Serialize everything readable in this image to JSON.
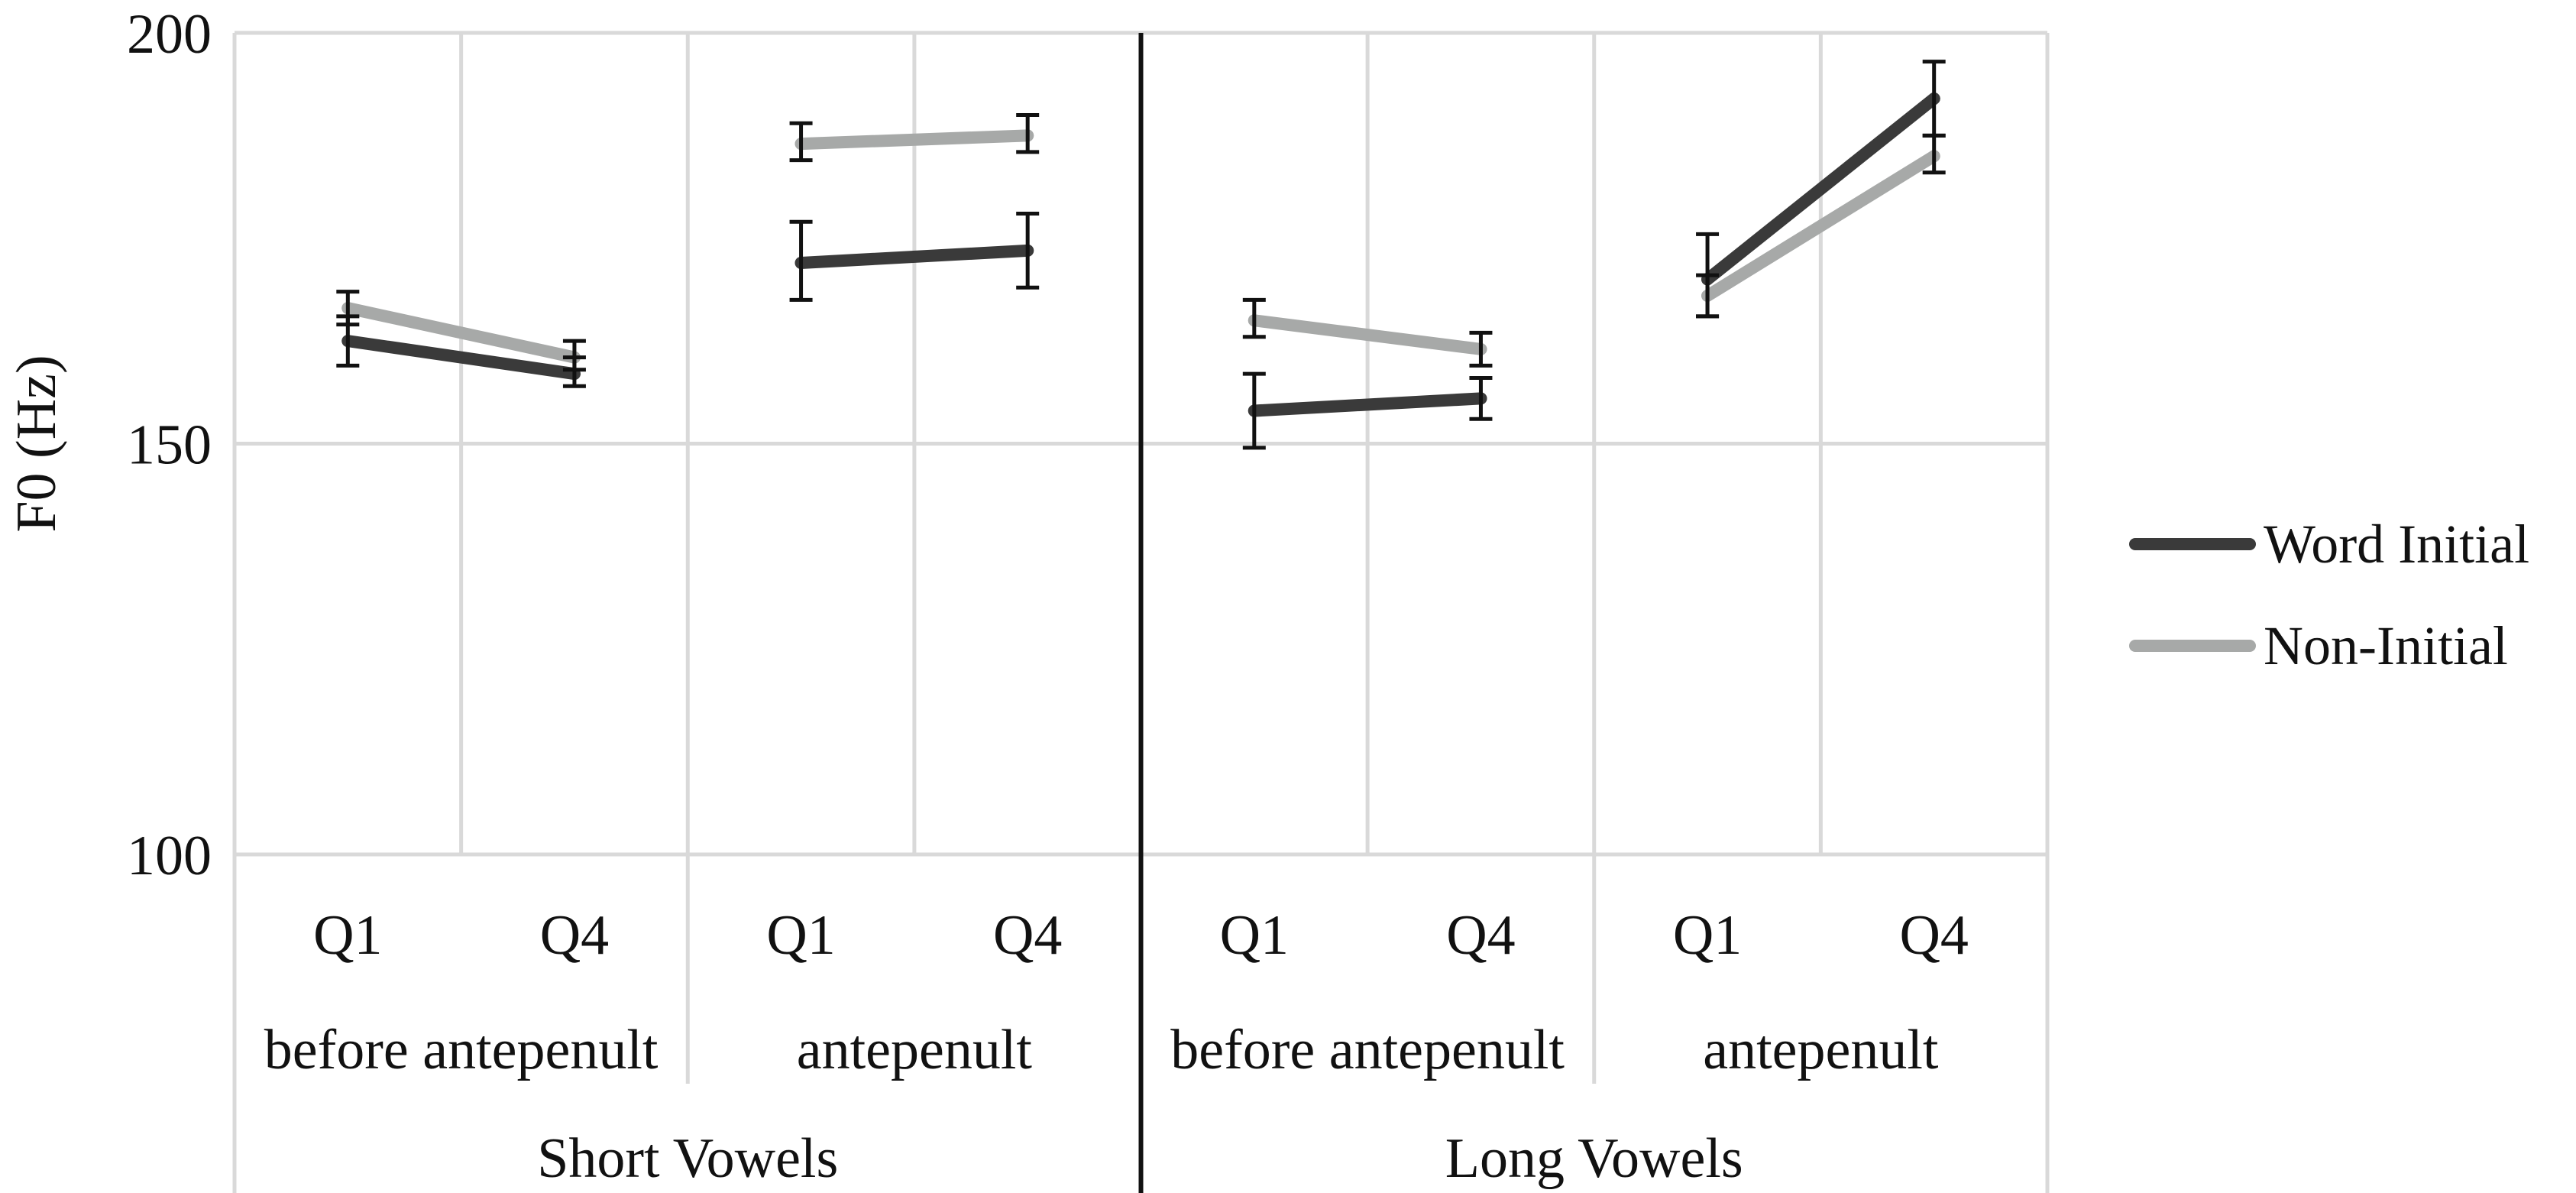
{
  "chart_data": {
    "type": "line",
    "ylabel": "F0 (Hz)",
    "ylim": [
      100,
      200
    ],
    "yticks": [
      100,
      150,
      200
    ],
    "grid": true,
    "legend_position": "right",
    "categories": [
      "Q1",
      "Q4",
      "Q1",
      "Q4",
      "Q1",
      "Q4",
      "Q1",
      "Q4"
    ],
    "positions": [
      {
        "label": "before antepenult",
        "categories": [
          0,
          1
        ]
      },
      {
        "label": "antepenult",
        "categories": [
          2,
          3
        ]
      },
      {
        "label": "before antepenult",
        "categories": [
          4,
          5
        ]
      },
      {
        "label": "antepenult",
        "categories": [
          6,
          7
        ]
      }
    ],
    "vowel_groups": [
      {
        "label": "Short Vowels",
        "categories": [
          0,
          1,
          2,
          3
        ]
      },
      {
        "label": "Long Vowels",
        "categories": [
          4,
          5,
          6,
          7
        ]
      }
    ],
    "series": [
      {
        "name": "Word Initial",
        "color": "#3a3a3a",
        "segments": [
          [
            0,
            1
          ],
          [
            2,
            3
          ],
          [
            4,
            5
          ],
          [
            6,
            7
          ]
        ],
        "values": [
          162.5,
          158.5,
          172.0,
          173.5,
          154.0,
          155.5,
          170.0,
          192.0
        ],
        "err_low": [
          159.5,
          157.0,
          167.5,
          169.0,
          149.5,
          153.0,
          165.5,
          187.5
        ],
        "err_high": [
          165.5,
          160.5,
          177.0,
          178.0,
          158.5,
          158.0,
          175.5,
          196.5
        ]
      },
      {
        "name": "Non-Initial",
        "color": "#a7a9a8",
        "segments": [
          [
            0,
            1
          ],
          [
            2,
            3
          ],
          [
            4,
            5
          ],
          [
            6,
            7
          ]
        ],
        "values": [
          166.5,
          160.5,
          186.5,
          187.5,
          165.0,
          161.5,
          168.0,
          185.0
        ],
        "err_low": [
          164.5,
          159.0,
          184.5,
          185.5,
          163.0,
          159.5,
          165.5,
          183.0
        ],
        "err_high": [
          168.5,
          162.5,
          189.0,
          190.0,
          167.5,
          163.5,
          170.5,
          187.5
        ]
      }
    ]
  }
}
